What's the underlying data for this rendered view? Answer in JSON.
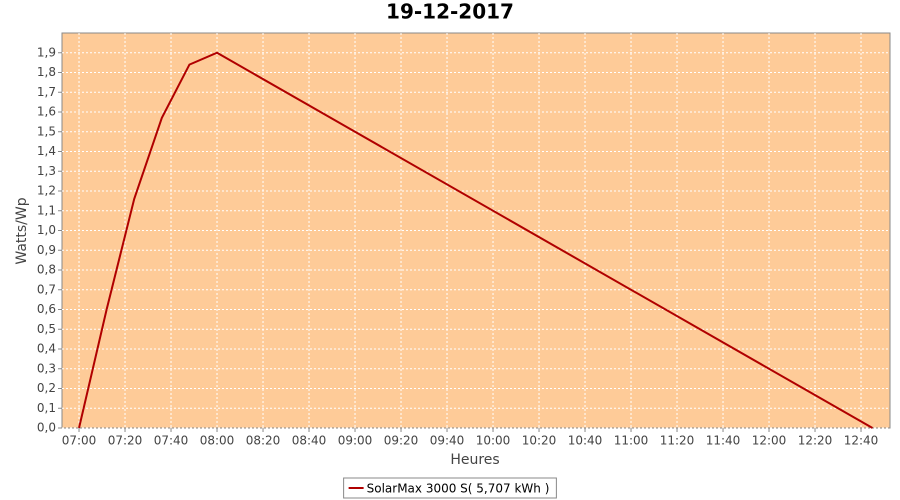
{
  "chart_data": {
    "type": "line",
    "title": "19-12-2017",
    "x_label": "Heures",
    "y_label": "Watts/Wp",
    "x": [
      420,
      432,
      444,
      456,
      468,
      480,
      765
    ],
    "series": [
      {
        "name": "SolarMax 3000 S( 5,707 kWh )",
        "color": "#b00000",
        "values": [
          0,
          0.6,
          1.16,
          1.57,
          1.84,
          1.9,
          0
        ]
      }
    ],
    "xlim": [
      412.6,
      772.6
    ],
    "ylim": [
      0,
      2.0
    ],
    "xticks": [
      {
        "value": 420,
        "label": "07:00"
      },
      {
        "value": 440,
        "label": "07:20"
      },
      {
        "value": 460,
        "label": "07:40"
      },
      {
        "value": 480,
        "label": "08:00"
      },
      {
        "value": 500,
        "label": "08:20"
      },
      {
        "value": 520,
        "label": "08:40"
      },
      {
        "value": 540,
        "label": "09:00"
      },
      {
        "value": 560,
        "label": "09:20"
      },
      {
        "value": 580,
        "label": "09:40"
      },
      {
        "value": 600,
        "label": "10:00"
      },
      {
        "value": 620,
        "label": "10:20"
      },
      {
        "value": 640,
        "label": "10:40"
      },
      {
        "value": 660,
        "label": "11:00"
      },
      {
        "value": 680,
        "label": "11:20"
      },
      {
        "value": 700,
        "label": "11:40"
      },
      {
        "value": 720,
        "label": "12:00"
      },
      {
        "value": 740,
        "label": "12:20"
      },
      {
        "value": 760,
        "label": "12:40"
      }
    ],
    "yticks": [
      {
        "value": 0,
        "label": "0,0"
      },
      {
        "value": 0.1,
        "label": "0,1"
      },
      {
        "value": 0.2,
        "label": "0,2"
      },
      {
        "value": 0.3,
        "label": "0,3"
      },
      {
        "value": 0.4,
        "label": "0,4"
      },
      {
        "value": 0.5,
        "label": "0,5"
      },
      {
        "value": 0.6,
        "label": "0,6"
      },
      {
        "value": 0.7,
        "label": "0,7"
      },
      {
        "value": 0.8,
        "label": "0,8"
      },
      {
        "value": 0.9,
        "label": "0,9"
      },
      {
        "value": 1.0,
        "label": "1,0"
      },
      {
        "value": 1.1,
        "label": "1,1"
      },
      {
        "value": 1.2,
        "label": "1,2"
      },
      {
        "value": 1.3,
        "label": "1,3"
      },
      {
        "value": 1.4,
        "label": "1,4"
      },
      {
        "value": 1.5,
        "label": "1,5"
      },
      {
        "value": 1.6,
        "label": "1,6"
      },
      {
        "value": 1.7,
        "label": "1,7"
      },
      {
        "value": 1.8,
        "label": "1,8"
      },
      {
        "value": 1.9,
        "label": "1,9"
      }
    ],
    "grid": true,
    "plot_background": "#fecb98",
    "legend": "bottom"
  }
}
